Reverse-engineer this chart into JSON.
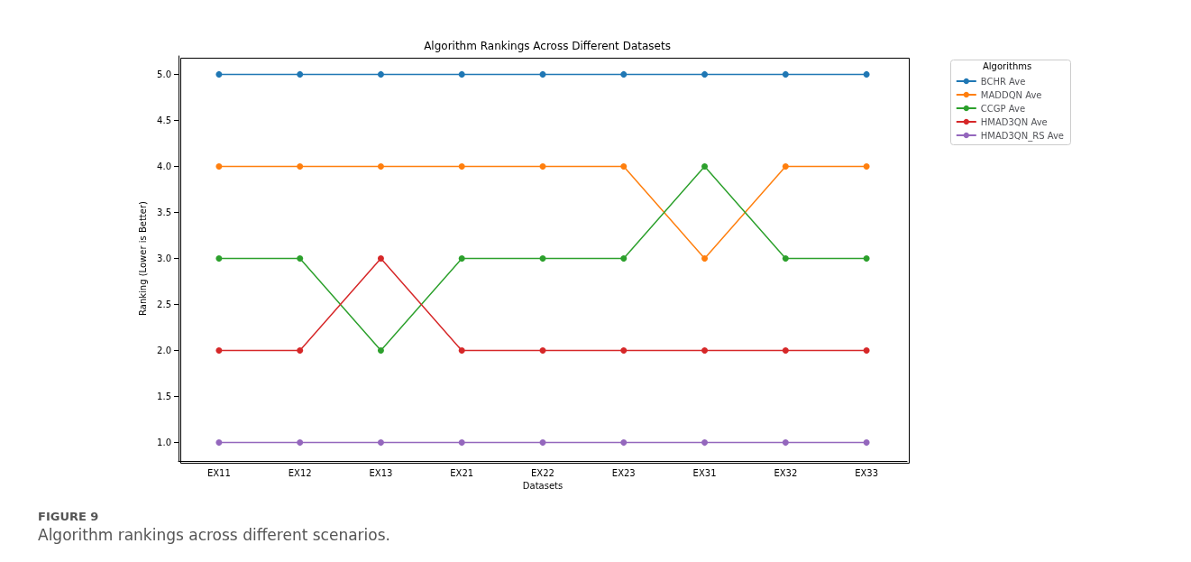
{
  "chart_data": {
    "type": "line",
    "title": "Algorithm Rankings Across Different Datasets",
    "xlabel": "Datasets",
    "ylabel": "Ranking (Lower is Better)",
    "legend_title": "Algorithms",
    "categories": [
      "EX11",
      "EX12",
      "EX13",
      "EX21",
      "EX22",
      "EX23",
      "EX31",
      "EX32",
      "EX33"
    ],
    "series": [
      {
        "name": "BCHR Ave",
        "color": "#1f77b4",
        "values": [
          5,
          5,
          5,
          5,
          5,
          5,
          5,
          5,
          5
        ]
      },
      {
        "name": "MADDQN Ave",
        "color": "#ff7f0e",
        "values": [
          4,
          4,
          4,
          4,
          4,
          4,
          3,
          4,
          4
        ]
      },
      {
        "name": "CCGP Ave",
        "color": "#2ca02c",
        "values": [
          3,
          3,
          2,
          3,
          3,
          3,
          4,
          3,
          3
        ]
      },
      {
        "name": "HMAD3QN Ave",
        "color": "#d62728",
        "values": [
          2,
          2,
          3,
          2,
          2,
          2,
          2,
          2,
          2
        ]
      },
      {
        "name": "HMAD3QN_RS Ave",
        "color": "#9467bd",
        "values": [
          1,
          1,
          1,
          1,
          1,
          1,
          1,
          1,
          1
        ]
      }
    ],
    "ylim": [
      0.8,
      5.2
    ],
    "yticks": [
      {
        "value": 1,
        "label": "1.0"
      },
      {
        "value": 1.5,
        "label": "1.5"
      },
      {
        "value": 2,
        "label": "2.0"
      },
      {
        "value": 2.5,
        "label": "2.5"
      },
      {
        "value": 3,
        "label": "3.0"
      },
      {
        "value": 3.5,
        "label": "3.5"
      },
      {
        "value": 4,
        "label": "4.0"
      },
      {
        "value": 4.5,
        "label": "4.5"
      },
      {
        "value": 5,
        "label": "5.0"
      }
    ],
    "grid": false,
    "legend": "top right",
    "marker": "circle",
    "line_style": "solid",
    "annotations": [
      "FIGURE 9",
      "Algorithm rankings across different scenarios."
    ]
  }
}
